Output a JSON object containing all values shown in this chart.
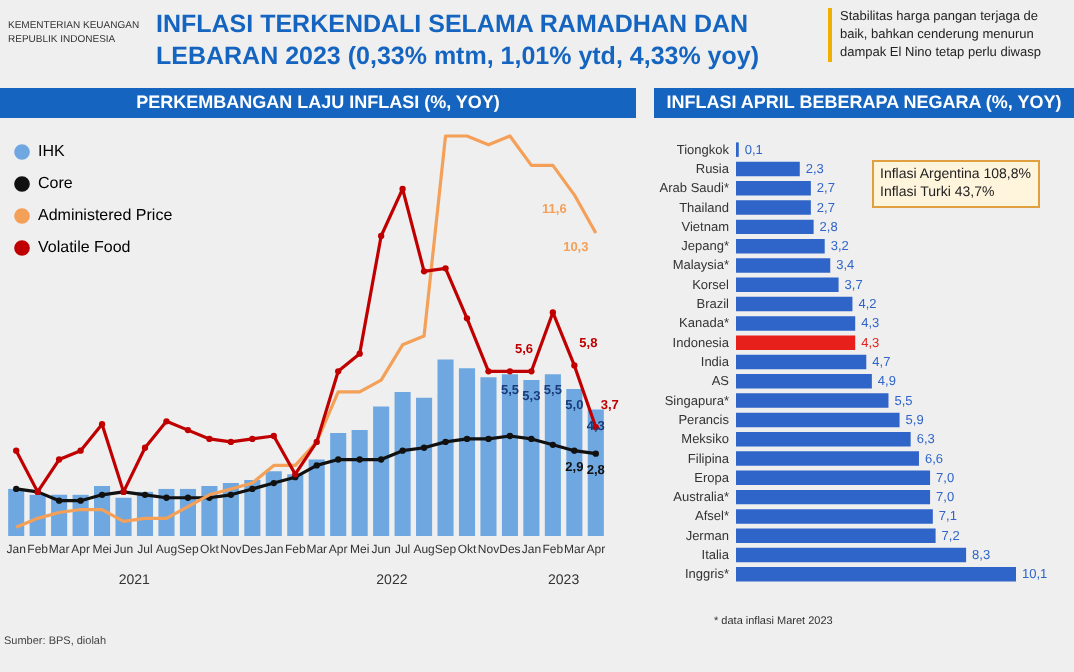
{
  "chart_data": [
    {
      "type": "other",
      "title": "INFLASI TERKENDALI SELAMA RAMADHAN DAN LEBARAN 2023 (0,33% mtm, 1,01% ytd, 4,33% yoy)",
      "annotations": [
        "KEMENTERIAN KEUANGAN",
        "REPUBLIK INDONESIA",
        "Stabilitas harga pangan terjaga de",
        "baik, bahkan cenderung menurun",
        "dampak El Nino tetap perlu diwasp"
      ]
    },
    {
      "type": "bar",
      "title": "PERKEMBANGAN LAJU INFLASI (%, YOY)",
      "categories": [
        "Jan",
        "Feb",
        "Mar",
        "Apr",
        "Mei",
        "Jun",
        "Jul",
        "Aug",
        "Sep",
        "Okt",
        "Nov",
        "Des",
        "Jan",
        "Feb",
        "Mar",
        "Apr",
        "Mei",
        "Jun",
        "Jul",
        "Aug",
        "Sep",
        "Okt",
        "Nov",
        "Des",
        "Jan",
        "Feb",
        "Mar",
        "Apr"
      ],
      "tick_labels": "x",
      "legend": "top left",
      "grid": false,
      "series": [
        {
          "name": "IHK",
          "type": "bar",
          "color": "#6fa8e0",
          "values": [
            1.6,
            1.4,
            1.4,
            1.4,
            1.7,
            1.3,
            1.5,
            1.6,
            1.6,
            1.7,
            1.8,
            1.9,
            2.2,
            2.1,
            2.6,
            3.5,
            3.6,
            4.4,
            4.9,
            4.7,
            6.0,
            5.7,
            5.4,
            5.5,
            5.3,
            5.5,
            5.0,
            4.3
          ],
          "value_labels": [
            null,
            null,
            null,
            null,
            null,
            null,
            null,
            null,
            null,
            null,
            null,
            null,
            null,
            null,
            null,
            null,
            null,
            null,
            null,
            null,
            null,
            null,
            null,
            "5,5",
            "5,3",
            "5,5",
            "5,0",
            "4,3"
          ]
        },
        {
          "name": "Core",
          "type": "line",
          "marker": "circle",
          "color": "#111111",
          "values": [
            1.6,
            1.5,
            1.2,
            1.2,
            1.4,
            1.5,
            1.4,
            1.3,
            1.3,
            1.3,
            1.4,
            1.6,
            1.8,
            2.0,
            2.4,
            2.6,
            2.6,
            2.6,
            2.9,
            3.0,
            3.2,
            3.3,
            3.3,
            3.4,
            3.3,
            3.1,
            2.9,
            2.8
          ],
          "value_labels": [
            null,
            null,
            null,
            null,
            null,
            null,
            null,
            null,
            null,
            null,
            null,
            null,
            null,
            null,
            null,
            null,
            null,
            null,
            null,
            null,
            null,
            null,
            null,
            null,
            null,
            null,
            "2,9",
            "2,8"
          ]
        },
        {
          "name": "Administered Price",
          "type": "line",
          "color": "#f4a058",
          "values": [
            0.3,
            0.6,
            0.8,
            0.9,
            0.9,
            0.5,
            0.6,
            0.6,
            1.0,
            1.4,
            1.6,
            1.8,
            2.4,
            2.4,
            3.2,
            4.9,
            4.9,
            5.3,
            6.5,
            6.8,
            13.6,
            13.6,
            13.3,
            13.6,
            12.6,
            12.6,
            11.6,
            10.3
          ],
          "value_labels": [
            null,
            null,
            null,
            null,
            null,
            null,
            null,
            null,
            null,
            null,
            null,
            null,
            null,
            null,
            null,
            null,
            null,
            null,
            null,
            null,
            null,
            null,
            null,
            null,
            null,
            null,
            "11,6",
            "10,3"
          ]
        },
        {
          "name": "Volatile Food",
          "type": "line",
          "marker": "circle",
          "color": "#c00000",
          "values": [
            2.9,
            1.5,
            2.6,
            2.9,
            3.8,
            1.5,
            3.0,
            3.9,
            3.6,
            3.3,
            3.2,
            3.3,
            3.4,
            2.1,
            3.2,
            5.6,
            6.2,
            10.2,
            11.8,
            9.0,
            9.1,
            7.4,
            5.6,
            5.6,
            5.6,
            7.6,
            5.8,
            3.7
          ],
          "value_labels": [
            null,
            null,
            null,
            null,
            null,
            null,
            null,
            null,
            null,
            null,
            null,
            null,
            null,
            null,
            null,
            null,
            null,
            null,
            null,
            null,
            null,
            null,
            null,
            "5,6",
            null,
            null,
            "5,8",
            "3,7"
          ]
        }
      ],
      "annotations": [
        "2021",
        "2022",
        "2023",
        "Sumber: BPS, diolah"
      ]
    },
    {
      "type": "bar",
      "orientation": "horizontal",
      "title": "INFLASI APRIL BEBERAPA NEGARA (%, YOY)",
      "tick_labels": "y",
      "grid": false,
      "categories": [
        "Tiongkok",
        "Rusia",
        "Arab Saudi*",
        "Thailand",
        "Vietnam",
        "Jepang*",
        "Malaysia*",
        "Korsel",
        "Brazil",
        "Kanada*",
        "Indonesia",
        "India",
        "AS",
        "Singapura*",
        "Perancis",
        "Meksiko",
        "Filipina",
        "Eropa",
        "Australia*",
        "Afsel*",
        "Jerman",
        "Italia",
        "Inggris*"
      ],
      "values": [
        0.1,
        2.3,
        2.7,
        2.7,
        2.8,
        3.2,
        3.4,
        3.7,
        4.2,
        4.3,
        4.3,
        4.7,
        4.9,
        5.5,
        5.9,
        6.3,
        6.6,
        7.0,
        7.0,
        7.1,
        7.2,
        8.3,
        10.1
      ],
      "value_labels": [
        "0,1",
        "2,3",
        "2,7",
        "2,7",
        "2,8",
        "3,2",
        "3,4",
        "3,7",
        "4,2",
        "4,3",
        "4,3",
        "4,7",
        "4,9",
        "5,5",
        "5,9",
        "6,3",
        "6,6",
        "7,0",
        "7,0",
        "7,1",
        "7,2",
        "8,3",
        "10,1"
      ],
      "colors": [
        "#2f64c8",
        "#2f64c8",
        "#2f64c8",
        "#2f64c8",
        "#2f64c8",
        "#2f64c8",
        "#2f64c8",
        "#2f64c8",
        "#2f64c8",
        "#2f64c8",
        "#e8201c",
        "#2f64c8",
        "#2f64c8",
        "#2f64c8",
        "#2f64c8",
        "#2f64c8",
        "#2f64c8",
        "#2f64c8",
        "#2f64c8",
        "#2f64c8",
        "#2f64c8",
        "#2f64c8",
        "#2f64c8"
      ],
      "annotations": [
        "Inflasi Argentina 108,8%",
        "Inflasi Turki 43,7%",
        "* data inflasi Maret 2023"
      ]
    }
  ]
}
